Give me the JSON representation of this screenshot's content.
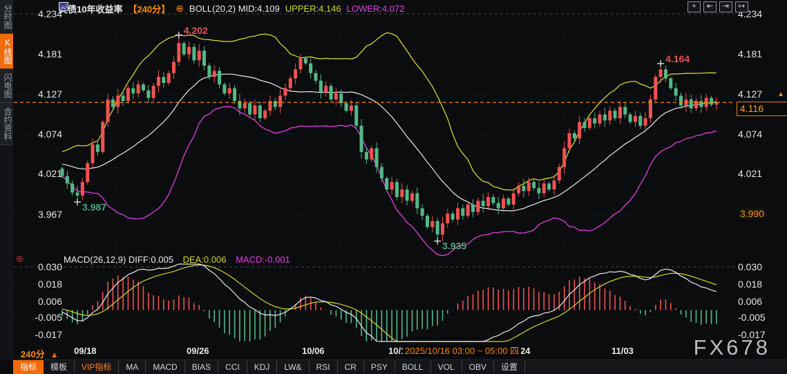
{
  "header": {
    "title": "美债10年收益率",
    "period_tag": "【240分】",
    "oplus_icon_glyph": "⊕",
    "boll_mid_label": "BOLL(20,2) MID:4.109",
    "upper_label": "UPPER:4.146",
    "lower_label": "LOWER:4.072",
    "colors": {
      "mid": "#e8eaed",
      "upper": "#d6d62c",
      "lower": "#e23ee2",
      "accent_orange": "#ff8a00"
    }
  },
  "sidebar": {
    "items": [
      {
        "label": "分时图",
        "active": false
      },
      {
        "label": "K线图",
        "active": true
      },
      {
        "label": "闪电图",
        "active": false
      },
      {
        "label": "合约资料",
        "active": false
      }
    ]
  },
  "top_right_icons": [
    {
      "name": "crosshair-move-icon",
      "glyph": "+"
    },
    {
      "name": "zoom-to-left-icon",
      "glyph": "⇤"
    },
    {
      "name": "zoom-to-right-icon",
      "glyph": "⇥"
    },
    {
      "name": "pan-out-right-icon",
      "glyph": "↦"
    }
  ],
  "macd_header": {
    "main": "MACD(26,12,9) DIFF:0.005",
    "dea": "DEA:0.006",
    "macd": "MACD:-0.001"
  },
  "current_price": {
    "value": "4.116",
    "arrow": "▲"
  },
  "secondary_price": "3.990",
  "x_tooltip": "2025/10/16 03:00 ~ 05:00 四",
  "period_label": {
    "text": "240分",
    "arrow": "▲"
  },
  "watermark": "FX678",
  "bottom_bar": {
    "tabs": [
      {
        "label": "指标",
        "style": "selected"
      },
      {
        "label": "模板",
        "style": "normal"
      },
      {
        "label": "VIP指标",
        "style": "vip"
      },
      {
        "label": "MA",
        "style": "normal"
      },
      {
        "label": "MACD",
        "style": "normal"
      },
      {
        "label": "BIAS",
        "style": "normal"
      },
      {
        "label": "CCI",
        "style": "normal"
      },
      {
        "label": "KDJ",
        "style": "normal"
      },
      {
        "label": "LW&",
        "style": "normal"
      },
      {
        "label": "RSI",
        "style": "normal"
      },
      {
        "label": "CR",
        "style": "normal"
      },
      {
        "label": "PSY",
        "style": "normal"
      },
      {
        "label": "BOLL",
        "style": "normal"
      },
      {
        "label": "VOL",
        "style": "normal"
      },
      {
        "label": "OBV",
        "style": "normal"
      },
      {
        "label": "设置",
        "style": "normal"
      }
    ]
  },
  "chart_data": {
    "type": "candlestick",
    "title": "美债10年收益率",
    "interval": "240分",
    "ylim": [
      3.935,
      4.234
    ],
    "price_ticks": [
      {
        "label": "4.234",
        "value": 4.234
      },
      {
        "label": "4.181",
        "value": 4.181
      },
      {
        "label": "4.127",
        "value": 4.127
      },
      {
        "label": "4.074",
        "value": 4.074
      },
      {
        "label": "4.021",
        "value": 4.021
      },
      {
        "label": "3.967",
        "value": 3.967
      }
    ],
    "macd_ticks": [
      {
        "label": "0.030",
        "value": 0.03
      },
      {
        "label": "0.018",
        "value": 0.018
      },
      {
        "label": "0.006",
        "value": 0.006
      },
      {
        "label": "-0.005",
        "value": -0.005
      },
      {
        "label": "-0.017",
        "value": -0.017
      }
    ],
    "x_ticks": [
      "09/18",
      "09/26",
      "10/06",
      "10/16",
      "10/24",
      "11/03"
    ],
    "boll": {
      "period": 20,
      "mult": 2,
      "mid": 4.109,
      "upper": 4.146,
      "lower": 4.072
    },
    "macd_params": {
      "fast": 12,
      "slow": 26,
      "signal": 9,
      "diff": 0.005,
      "dea": 0.006,
      "macd": -0.001
    },
    "last_price": 4.116,
    "reference_price": 3.99,
    "colors": {
      "up": "#ef5350",
      "down": "#53b987",
      "boll_upper": "#d6d62c",
      "boll_mid": "#ececec",
      "boll_lower": "#e23ee2",
      "last_price_line": "#ff8a00"
    },
    "key_points": [
      {
        "index": 3,
        "type": "low",
        "label": "3.987"
      },
      {
        "index": 23,
        "type": "high",
        "label": "4.202"
      },
      {
        "index": 74,
        "type": "low",
        "label": "3.935"
      },
      {
        "index": 118,
        "type": "high",
        "label": "4.164"
      }
    ],
    "warmup_closes": [
      4.03,
      4.04,
      4.028,
      4.035,
      4.045,
      4.038,
      4.03,
      4.042,
      4.05,
      4.04,
      4.032,
      4.038,
      4.03,
      4.022,
      4.025
    ],
    "first_open": 4.028,
    "closes": [
      4.018,
      4.008,
      3.996,
      3.992,
      4.01,
      4.035,
      4.06,
      4.05,
      4.09,
      4.12,
      4.11,
      4.125,
      4.118,
      4.135,
      4.128,
      4.14,
      4.132,
      4.122,
      4.138,
      4.15,
      4.142,
      4.155,
      4.17,
      4.195,
      4.18,
      4.19,
      4.172,
      4.185,
      4.165,
      4.15,
      4.158,
      4.14,
      4.128,
      4.135,
      4.118,
      4.108,
      4.115,
      4.1,
      4.112,
      4.095,
      4.105,
      4.118,
      4.11,
      4.125,
      4.135,
      4.148,
      4.16,
      4.175,
      4.168,
      4.155,
      4.145,
      4.13,
      4.138,
      4.12,
      4.128,
      4.115,
      4.105,
      4.112,
      4.085,
      4.05,
      4.04,
      4.055,
      4.03,
      4.015,
      4.0,
      4.01,
      3.99,
      4.0,
      3.985,
      3.995,
      3.975,
      3.965,
      3.95,
      3.958,
      3.94,
      3.955,
      3.968,
      3.96,
      3.975,
      3.965,
      3.98,
      3.97,
      3.985,
      3.978,
      3.99,
      3.982,
      3.975,
      3.988,
      3.98,
      3.995,
      4.005,
      3.998,
      4.01,
      4.002,
      3.995,
      4.008,
      4.0,
      4.012,
      4.03,
      4.055,
      4.075,
      4.068,
      4.09,
      4.082,
      4.095,
      4.088,
      4.1,
      4.092,
      4.105,
      4.095,
      4.11,
      4.1,
      4.09,
      4.098,
      4.085,
      4.095,
      4.12,
      4.15,
      4.16,
      4.148,
      4.135,
      4.125,
      4.112,
      4.12,
      4.108,
      4.118,
      4.11,
      4.122,
      4.113,
      4.116
    ]
  }
}
